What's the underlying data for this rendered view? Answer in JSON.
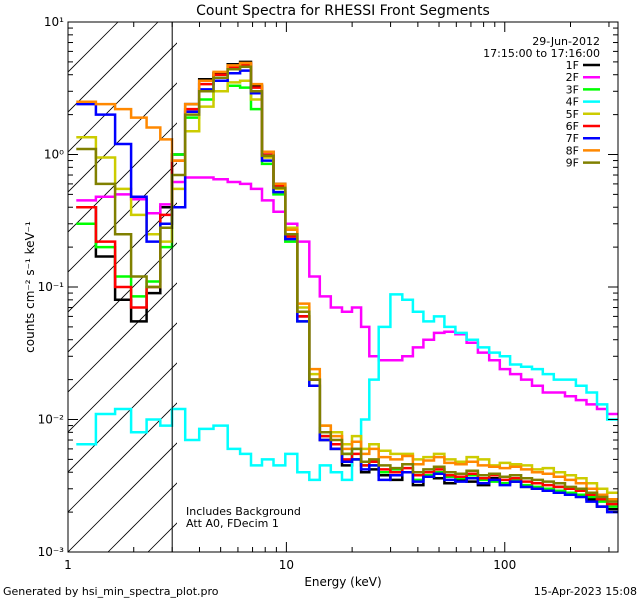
{
  "footer": {
    "generator": "Generated by hsi_min_spectra_plot.pro",
    "timestamp": "15-Apr-2023 15:08"
  },
  "chart_data": {
    "type": "line",
    "title": "Count Spectra for RHESSI Front Segments",
    "xlabel": "Energy (keV)",
    "ylabel": "counts cm⁻² s⁻¹ keV⁻¹",
    "x_scale": "log",
    "y_scale": "log",
    "xlim": [
      1,
      330
    ],
    "ylim": [
      0.001,
      10
    ],
    "x_ticks": [
      "1",
      "10",
      "100"
    ],
    "y_ticks": [
      "10⁻³",
      "10⁻²",
      "10⁻¹",
      "10⁰",
      "10¹"
    ],
    "legend_position": "top-right",
    "info_date": "29-Jun-2012",
    "info_time": "17:15:00 to 17:16:00",
    "hatched_below_keV": 3,
    "annotation_line1": "Includes Background",
    "annotation_line2": "Att A0, FDecim 1",
    "series": [
      {
        "name": "1F",
        "color": "#000000",
        "x": [
          1.2,
          1.5,
          1.8,
          2.1,
          2.5,
          2.8,
          3.2,
          3.7,
          4.3,
          5.0,
          5.8,
          6.5,
          7.3,
          8.2,
          9.3,
          10.5,
          12,
          13.5,
          15,
          17,
          19,
          21,
          23,
          25,
          28,
          32,
          36,
          40,
          45,
          50,
          56,
          63,
          71,
          80,
          90,
          100,
          112,
          126,
          141,
          158,
          178,
          200,
          224,
          250,
          280,
          310
        ],
        "y": [
          0.4,
          0.17,
          0.08,
          0.055,
          0.09,
          0.4,
          1.0,
          2.4,
          3.7,
          4.1,
          4.8,
          5.0,
          3.3,
          1.05,
          0.6,
          0.25,
          0.06,
          0.02,
          0.007,
          0.006,
          0.0045,
          0.005,
          0.004,
          0.0042,
          0.0038,
          0.0035,
          0.004,
          0.0032,
          0.0038,
          0.0036,
          0.0033,
          0.0035,
          0.0034,
          0.0032,
          0.0036,
          0.0033,
          0.0034,
          0.0031,
          0.003,
          0.0029,
          0.0031,
          0.0028,
          0.0027,
          0.0025,
          0.0022,
          0.0021
        ]
      },
      {
        "name": "2F",
        "color": "#ff00ff",
        "x": [
          1.2,
          1.5,
          1.8,
          2.1,
          2.5,
          2.8,
          3.2,
          3.7,
          4.3,
          5.0,
          5.8,
          6.5,
          7.3,
          8.2,
          9.3,
          10.5,
          12,
          13.5,
          15,
          17,
          19,
          21,
          23,
          25,
          28,
          32,
          36,
          40,
          45,
          50,
          56,
          63,
          71,
          80,
          90,
          100,
          112,
          126,
          141,
          158,
          178,
          200,
          224,
          250,
          280,
          310
        ],
        "y": [
          0.45,
          0.48,
          0.5,
          0.46,
          0.36,
          0.42,
          0.62,
          0.67,
          0.67,
          0.65,
          0.62,
          0.6,
          0.55,
          0.45,
          0.37,
          0.3,
          0.22,
          0.12,
          0.085,
          0.07,
          0.065,
          0.07,
          0.05,
          0.03,
          0.028,
          0.028,
          0.03,
          0.035,
          0.04,
          0.045,
          0.046,
          0.044,
          0.038,
          0.032,
          0.028,
          0.024,
          0.022,
          0.02,
          0.018,
          0.016,
          0.016,
          0.015,
          0.014,
          0.013,
          0.012,
          0.011
        ]
      },
      {
        "name": "3F",
        "color": "#00ff00",
        "x": [
          1.2,
          1.5,
          1.8,
          2.1,
          2.5,
          2.8,
          3.2,
          3.7,
          4.3,
          5.0,
          5.8,
          6.5,
          7.3,
          8.2,
          9.3,
          10.5,
          12,
          13.5,
          15,
          17,
          19,
          21,
          23,
          25,
          28,
          32,
          36,
          40,
          45,
          50,
          56,
          63,
          71,
          80,
          90,
          100,
          112,
          126,
          141,
          158,
          178,
          200,
          224,
          250,
          280,
          310
        ],
        "y": [
          0.3,
          0.2,
          0.12,
          0.085,
          0.11,
          0.2,
          1.0,
          1.9,
          2.6,
          3.0,
          3.3,
          3.2,
          2.2,
          0.85,
          0.5,
          0.22,
          0.055,
          0.018,
          0.0075,
          0.0065,
          0.0055,
          0.005,
          0.0045,
          0.0045,
          0.004,
          0.0042,
          0.004,
          0.0035,
          0.0038,
          0.004,
          0.0037,
          0.0036,
          0.0038,
          0.0035,
          0.0034,
          0.0033,
          0.0035,
          0.0032,
          0.0031,
          0.003,
          0.0029,
          0.0028,
          0.0027,
          0.0026,
          0.0024,
          0.0022
        ]
      },
      {
        "name": "4F",
        "color": "#00ffff",
        "x": [
          1.2,
          1.5,
          1.8,
          2.1,
          2.5,
          2.8,
          3.2,
          3.7,
          4.3,
          5.0,
          5.8,
          6.5,
          7.3,
          8.2,
          9.3,
          10.5,
          12,
          13.5,
          15,
          17,
          19,
          21,
          23,
          25,
          28,
          32,
          36,
          40,
          45,
          50,
          56,
          63,
          71,
          80,
          90,
          100,
          112,
          126,
          141,
          158,
          178,
          200,
          224,
          250,
          280,
          310
        ],
        "y": [
          0.0065,
          0.011,
          0.012,
          0.008,
          0.01,
          0.009,
          0.012,
          0.007,
          0.0085,
          0.009,
          0.006,
          0.0055,
          0.0045,
          0.005,
          0.0045,
          0.0055,
          0.004,
          0.0035,
          0.0045,
          0.004,
          0.0035,
          0.006,
          0.01,
          0.02,
          0.05,
          0.088,
          0.08,
          0.065,
          0.055,
          0.06,
          0.05,
          0.045,
          0.04,
          0.035,
          0.032,
          0.03,
          0.026,
          0.025,
          0.024,
          0.022,
          0.02,
          0.02,
          0.018,
          0.016,
          0.013,
          0.01
        ]
      },
      {
        "name": "5F",
        "color": "#cccc00",
        "x": [
          1.2,
          1.5,
          1.8,
          2.1,
          2.5,
          2.8,
          3.2,
          3.7,
          4.3,
          5.0,
          5.8,
          6.5,
          7.3,
          8.2,
          9.3,
          10.5,
          12,
          13.5,
          15,
          17,
          19,
          21,
          23,
          25,
          28,
          32,
          36,
          40,
          45,
          50,
          56,
          63,
          71,
          80,
          90,
          100,
          112,
          126,
          141,
          158,
          178,
          200,
          224,
          250,
          280,
          310
        ],
        "y": [
          1.35,
          0.95,
          0.55,
          0.35,
          0.25,
          0.22,
          0.55,
          1.5,
          2.3,
          3.0,
          3.5,
          3.6,
          2.6,
          0.95,
          0.55,
          0.28,
          0.07,
          0.022,
          0.009,
          0.008,
          0.0065,
          0.0075,
          0.006,
          0.0065,
          0.0058,
          0.0055,
          0.0055,
          0.005,
          0.0052,
          0.0055,
          0.005,
          0.0048,
          0.0052,
          0.005,
          0.0045,
          0.0047,
          0.0046,
          0.0045,
          0.0042,
          0.0043,
          0.004,
          0.0038,
          0.0036,
          0.0033,
          0.003,
          0.0028
        ]
      },
      {
        "name": "6F",
        "color": "#ff0000",
        "x": [
          1.2,
          1.5,
          1.8,
          2.1,
          2.5,
          2.8,
          3.2,
          3.7,
          4.3,
          5.0,
          5.8,
          6.5,
          7.3,
          8.2,
          9.3,
          10.5,
          12,
          13.5,
          15,
          17,
          19,
          21,
          23,
          25,
          28,
          32,
          36,
          40,
          45,
          50,
          56,
          63,
          71,
          80,
          90,
          100,
          112,
          126,
          141,
          158,
          178,
          200,
          224,
          250,
          280,
          310
        ],
        "y": [
          0.4,
          0.22,
          0.1,
          0.07,
          0.1,
          0.35,
          0.9,
          2.2,
          3.4,
          4.0,
          4.6,
          4.8,
          3.2,
          1.0,
          0.58,
          0.24,
          0.06,
          0.02,
          0.0075,
          0.0065,
          0.005,
          0.0055,
          0.0045,
          0.0048,
          0.0042,
          0.004,
          0.0043,
          0.0038,
          0.004,
          0.0042,
          0.0038,
          0.0037,
          0.0039,
          0.0036,
          0.0038,
          0.0035,
          0.0036,
          0.0034,
          0.0033,
          0.0032,
          0.0031,
          0.003,
          0.0029,
          0.0027,
          0.0025,
          0.0023
        ]
      },
      {
        "name": "7F",
        "color": "#0000ff",
        "x": [
          1.2,
          1.5,
          1.8,
          2.1,
          2.5,
          2.8,
          3.2,
          3.7,
          4.3,
          5.0,
          5.8,
          6.5,
          7.3,
          8.2,
          9.3,
          10.5,
          12,
          13.5,
          15,
          17,
          19,
          21,
          23,
          25,
          28,
          32,
          36,
          40,
          45,
          50,
          56,
          63,
          71,
          80,
          90,
          100,
          112,
          126,
          141,
          158,
          178,
          200,
          224,
          250,
          280,
          310
        ],
        "y": [
          2.4,
          2.0,
          1.2,
          0.48,
          0.22,
          0.3,
          0.4,
          2.1,
          3.1,
          3.6,
          4.1,
          4.3,
          2.9,
          0.9,
          0.52,
          0.23,
          0.055,
          0.018,
          0.007,
          0.006,
          0.0048,
          0.005,
          0.0042,
          0.0045,
          0.0035,
          0.0038,
          0.004,
          0.0034,
          0.0037,
          0.0039,
          0.0035,
          0.0034,
          0.0036,
          0.0033,
          0.0035,
          0.0032,
          0.0034,
          0.0031,
          0.003,
          0.0029,
          0.0028,
          0.0027,
          0.0026,
          0.0024,
          0.0022,
          0.002
        ]
      },
      {
        "name": "8F",
        "color": "#ff8800",
        "x": [
          1.2,
          1.5,
          1.8,
          2.1,
          2.5,
          2.8,
          3.2,
          3.7,
          4.3,
          5.0,
          5.8,
          6.5,
          7.3,
          8.2,
          9.3,
          10.5,
          12,
          13.5,
          15,
          17,
          19,
          21,
          23,
          25,
          28,
          32,
          36,
          40,
          45,
          50,
          56,
          63,
          71,
          80,
          90,
          100,
          112,
          126,
          141,
          158,
          178,
          200,
          224,
          250,
          280,
          310
        ],
        "y": [
          2.5,
          2.4,
          2.2,
          1.9,
          1.6,
          1.3,
          0.9,
          2.4,
          3.6,
          4.2,
          4.7,
          4.9,
          3.4,
          1.05,
          0.6,
          0.27,
          0.075,
          0.024,
          0.009,
          0.0075,
          0.006,
          0.0068,
          0.0055,
          0.006,
          0.0052,
          0.005,
          0.0053,
          0.0046,
          0.0049,
          0.0052,
          0.0047,
          0.0046,
          0.0048,
          0.0045,
          0.0044,
          0.0043,
          0.0044,
          0.0042,
          0.004,
          0.0039,
          0.0037,
          0.0035,
          0.0033,
          0.003,
          0.0027,
          0.0025
        ]
      },
      {
        "name": "9F",
        "color": "#808000",
        "x": [
          1.2,
          1.5,
          1.8,
          2.1,
          2.5,
          2.8,
          3.2,
          3.7,
          4.3,
          5.0,
          5.8,
          6.5,
          7.3,
          8.2,
          9.3,
          10.5,
          12,
          13.5,
          15,
          17,
          19,
          21,
          23,
          25,
          28,
          32,
          36,
          40,
          45,
          50,
          56,
          63,
          71,
          80,
          90,
          100,
          112,
          126,
          141,
          158,
          178,
          200,
          224,
          250,
          280,
          310
        ],
        "y": [
          1.1,
          0.6,
          0.25,
          0.12,
          0.1,
          0.28,
          0.7,
          2.0,
          3.0,
          3.8,
          4.4,
          4.6,
          3.0,
          0.98,
          0.56,
          0.25,
          0.065,
          0.02,
          0.008,
          0.007,
          0.0055,
          0.006,
          0.0048,
          0.005,
          0.0045,
          0.0043,
          0.0046,
          0.004,
          0.0042,
          0.0044,
          0.004,
          0.0039,
          0.0041,
          0.0038,
          0.0039,
          0.0037,
          0.0038,
          0.0036,
          0.0035,
          0.0034,
          0.0033,
          0.0031,
          0.003,
          0.0028,
          0.0026,
          0.0024
        ]
      }
    ]
  }
}
